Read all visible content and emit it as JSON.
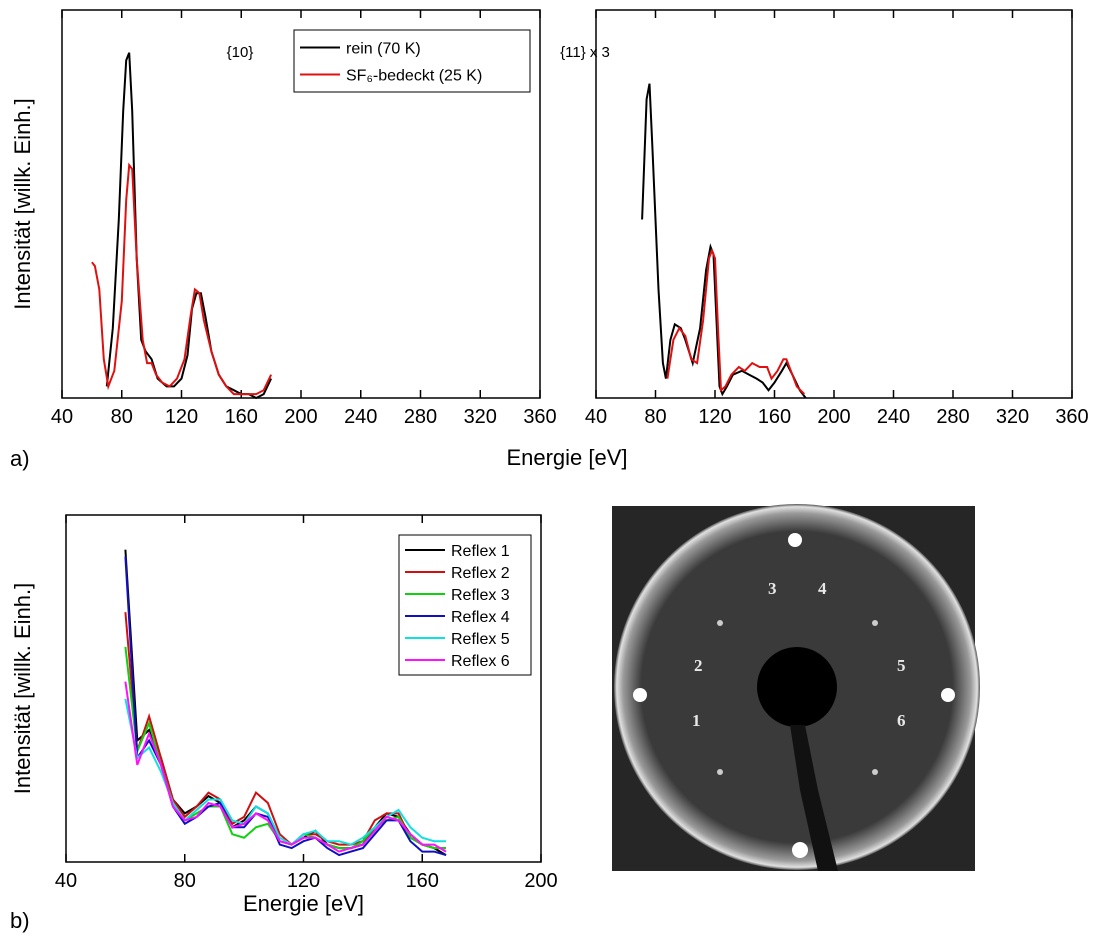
{
  "chart_data": [
    {
      "type": "line",
      "annotation": "{10}",
      "y_label": "Intensität [willk. Einh.]",
      "legend": "upper right",
      "xlim": [
        40,
        360
      ],
      "xticks": [
        40,
        80,
        120,
        160,
        200,
        240,
        280,
        320,
        360
      ],
      "ylim": [
        0,
        100
      ],
      "series": [
        {
          "name": "rein (70 K)",
          "color": "#000000",
          "x": [
            70,
            74,
            78,
            81,
            83,
            85,
            87,
            90,
            93,
            96,
            100,
            104,
            110,
            115,
            120,
            124,
            127,
            130,
            133,
            136,
            140,
            145,
            150,
            155,
            160,
            165,
            170,
            175,
            180
          ],
          "values": [
            3,
            18,
            46,
            74,
            87,
            89,
            74,
            36,
            15,
            12,
            10,
            5,
            3,
            3,
            5,
            11,
            23,
            27,
            27,
            21,
            12,
            6,
            3,
            2,
            1,
            1,
            0,
            1,
            5
          ]
        },
        {
          "name": "SF₆-bedeckt (25 K)",
          "color": "#e01010",
          "x": [
            60,
            62,
            65,
            68,
            71,
            75,
            80,
            83,
            85,
            87,
            90,
            94,
            97,
            100,
            103,
            107,
            112,
            117,
            122,
            126,
            129,
            132,
            135,
            140,
            145,
            150,
            155,
            160,
            165,
            170,
            175,
            180
          ],
          "values": [
            35,
            34,
            28,
            10,
            3,
            7,
            25,
            51,
            60,
            59,
            36,
            15,
            9,
            9,
            6,
            4,
            3,
            5,
            10,
            21,
            28,
            27,
            20,
            12,
            6,
            3,
            1,
            1,
            1,
            1,
            2,
            6
          ]
        }
      ]
    },
    {
      "type": "line",
      "annotation": "{11} x 3",
      "xlim": [
        40,
        360
      ],
      "xticks": [
        40,
        80,
        120,
        160,
        200,
        240,
        280,
        320,
        360
      ],
      "ylim": [
        0,
        100
      ],
      "series": [
        {
          "color": "#000000",
          "x": [
            71,
            74,
            76,
            78,
            82,
            85,
            87,
            90,
            93,
            97,
            100,
            105,
            110,
            114,
            117,
            119,
            121,
            123,
            125,
            128,
            132,
            138,
            143,
            148,
            152,
            156,
            160,
            165,
            168,
            172,
            177,
            181
          ],
          "values": [
            46,
            77,
            81,
            64,
            28,
            9,
            5,
            15,
            19,
            18,
            15,
            9,
            18,
            33,
            39,
            37,
            20,
            3,
            1,
            3,
            6,
            7,
            6,
            5,
            4,
            2,
            4,
            7,
            9,
            6,
            2,
            0
          ]
        },
        {
          "color": "#e01010",
          "x": [
            88,
            92,
            96,
            100,
            104,
            108,
            112,
            116,
            118,
            120,
            122,
            124,
            127,
            131,
            136,
            140,
            145,
            150,
            155,
            158,
            162,
            166,
            168,
            171,
            175,
            180
          ],
          "values": [
            5,
            15,
            18,
            16,
            10,
            9,
            20,
            36,
            38,
            36,
            18,
            2,
            3,
            6,
            8,
            7,
            9,
            8,
            8,
            5,
            7,
            10,
            10,
            7,
            3,
            1
          ]
        }
      ]
    },
    {
      "type": "line",
      "y_label": "Intensität [willk. Einh.]",
      "x_label": "Energie [eV]",
      "legend": "upper right",
      "xlim": [
        40,
        200
      ],
      "xticks": [
        40,
        80,
        120,
        160,
        200
      ],
      "ylim": [
        0,
        100
      ],
      "x": [
        60,
        64,
        68,
        72,
        76,
        80,
        84,
        88,
        92,
        96,
        100,
        104,
        108,
        112,
        116,
        120,
        124,
        128,
        132,
        136,
        140,
        144,
        148,
        152,
        156,
        160,
        164,
        168
      ],
      "series": [
        {
          "name": "Reflex 1",
          "color": "#000000",
          "values": [
            90,
            35,
            38,
            30,
            18,
            14,
            16,
            19,
            17,
            10,
            12,
            16,
            14,
            6,
            5,
            7,
            9,
            5,
            4,
            4,
            5,
            10,
            14,
            13,
            8,
            5,
            4,
            2
          ]
        },
        {
          "name": "Reflex 2",
          "color": "#d01010",
          "values": [
            72,
            32,
            42,
            30,
            18,
            13,
            16,
            20,
            18,
            11,
            13,
            20,
            17,
            8,
            5,
            8,
            8,
            6,
            5,
            5,
            6,
            12,
            14,
            14,
            7,
            5,
            4,
            4
          ]
        },
        {
          "name": "Reflex 3",
          "color": "#10d010",
          "values": [
            62,
            32,
            40,
            28,
            17,
            12,
            14,
            16,
            16,
            8,
            7,
            10,
            11,
            6,
            5,
            8,
            7,
            5,
            4,
            4,
            6,
            10,
            12,
            13,
            7,
            5,
            4,
            4
          ]
        },
        {
          "name": "Reflex 4",
          "color": "#1010c0",
          "values": [
            88,
            30,
            35,
            28,
            16,
            11,
            13,
            16,
            17,
            10,
            10,
            14,
            13,
            5,
            4,
            6,
            7,
            4,
            2,
            3,
            4,
            8,
            12,
            12,
            6,
            3,
            3,
            2
          ]
        },
        {
          "name": "Reflex 5",
          "color": "#10e0e0",
          "values": [
            47,
            30,
            33,
            26,
            17,
            12,
            15,
            18,
            18,
            12,
            11,
            16,
            14,
            7,
            5,
            8,
            9,
            6,
            6,
            5,
            7,
            10,
            13,
            15,
            10,
            7,
            6,
            6
          ]
        },
        {
          "name": "Reflex 6",
          "color": "#ff10ff",
          "values": [
            52,
            28,
            37,
            28,
            16,
            12,
            13,
            17,
            16,
            10,
            11,
            14,
            12,
            6,
            5,
            7,
            7,
            5,
            3,
            4,
            5,
            9,
            13,
            12,
            8,
            5,
            5,
            3
          ]
        }
      ]
    }
  ],
  "figure": {
    "panel_labels": [
      "a)",
      "b)"
    ],
    "x_label": "Energie [eV]",
    "image_labels": [
      "1",
      "2",
      "3",
      "4",
      "5",
      "6"
    ]
  }
}
